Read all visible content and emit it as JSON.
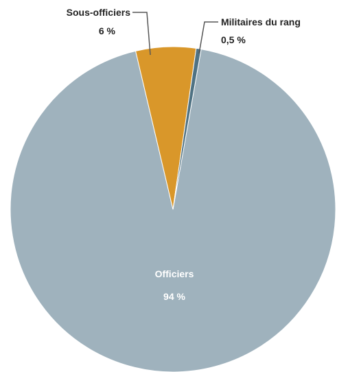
{
  "chart_data": {
    "type": "pie",
    "slices": [
      {
        "label": "Officiers",
        "value": 94,
        "value_label": "94 %",
        "color": "#9fb2bd"
      },
      {
        "label": "Sous-officiers",
        "value": 6,
        "value_label": "6 %",
        "color": "#d9972a"
      },
      {
        "label": "Militaires du rang",
        "value": 0.5,
        "value_label": "0,5 %",
        "color": "#4f7283"
      }
    ],
    "legend": "callout labels"
  }
}
